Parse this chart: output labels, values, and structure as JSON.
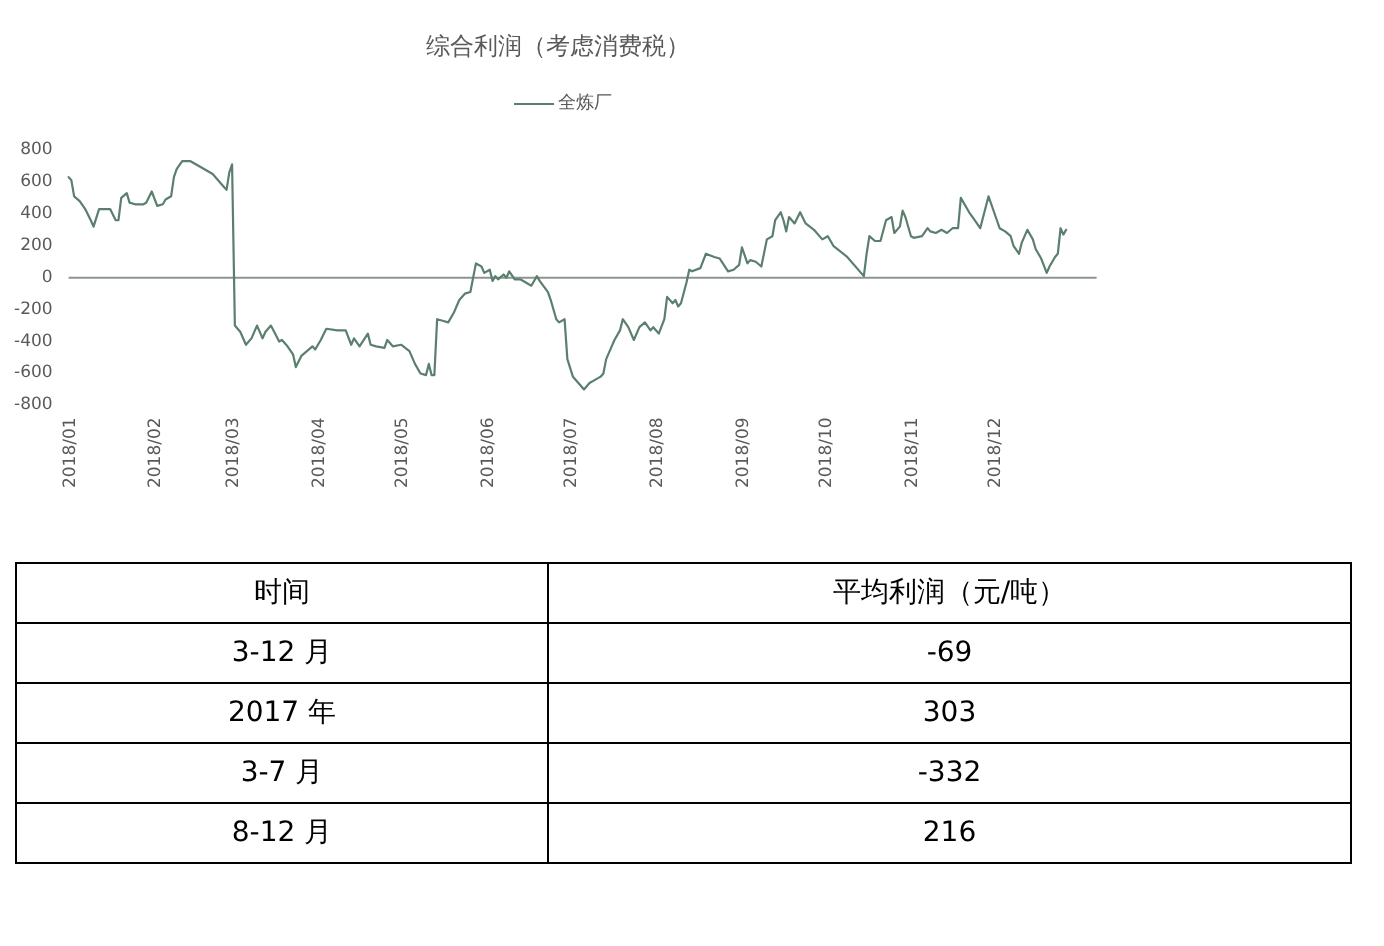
{
  "chart_data": [
    {
      "type": "line",
      "title": "综合利润（考虑消费税）",
      "legend": "top",
      "xlim": [
        "2018-01-01",
        "2019-01-07"
      ],
      "xticks": [
        {
          "value": "2018-01-01",
          "label": "2018/01"
        },
        {
          "value": "2018-02-01",
          "label": "2018/02"
        },
        {
          "value": "2018-03-01",
          "label": "2018/03"
        },
        {
          "value": "2018-04-01",
          "label": "2018/04"
        },
        {
          "value": "2018-05-01",
          "label": "2018/05"
        },
        {
          "value": "2018-06-01",
          "label": "2018/06"
        },
        {
          "value": "2018-07-01",
          "label": "2018/07"
        },
        {
          "value": "2018-08-01",
          "label": "2018/08"
        },
        {
          "value": "2018-09-01",
          "label": "2018/09"
        },
        {
          "value": "2018-10-01",
          "label": "2018/10"
        },
        {
          "value": "2018-11-01",
          "label": "2018/11"
        },
        {
          "value": "2018-12-01",
          "label": "2018/12"
        }
      ],
      "ylim": [
        -800,
        800
      ],
      "yticks": [
        -800,
        -600,
        -400,
        -200,
        0,
        200,
        400,
        600,
        800
      ],
      "series": [
        {
          "name": "全炼厂",
          "color": "#5b7f6e",
          "x": [
            "2018-01-01",
            "2018-01-02",
            "2018-01-03",
            "2018-01-05",
            "2018-01-07",
            "2018-01-09",
            "2018-01-10",
            "2018-01-12",
            "2018-01-16",
            "2018-01-18",
            "2018-01-19",
            "2018-01-20",
            "2018-01-22",
            "2018-01-23",
            "2018-01-25",
            "2018-01-28",
            "2018-01-29",
            "2018-01-31",
            "2018-02-02",
            "2018-02-04",
            "2018-02-05",
            "2018-02-07",
            "2018-02-08",
            "2018-02-09",
            "2018-02-11",
            "2018-02-14",
            "2018-02-17",
            "2018-02-22",
            "2018-02-26",
            "2018-02-27",
            "2018-02-28",
            "2018-03-01",
            "2018-03-02",
            "2018-03-04",
            "2018-03-06",
            "2018-03-08",
            "2018-03-10",
            "2018-03-12",
            "2018-03-13",
            "2018-03-15",
            "2018-03-18",
            "2018-03-19",
            "2018-03-21",
            "2018-03-23",
            "2018-03-24",
            "2018-03-26",
            "2018-03-28",
            "2018-03-30",
            "2018-03-31",
            "2018-04-02",
            "2018-04-04",
            "2018-04-08",
            "2018-04-11",
            "2018-04-13",
            "2018-04-14",
            "2018-04-16",
            "2018-04-19",
            "2018-04-20",
            "2018-04-22",
            "2018-04-25",
            "2018-04-26",
            "2018-04-28",
            "2018-05-01",
            "2018-05-04",
            "2018-05-06",
            "2018-05-08",
            "2018-05-10",
            "2018-05-11",
            "2018-05-12",
            "2018-05-13",
            "2018-05-14",
            "2018-05-16",
            "2018-05-18",
            "2018-05-20",
            "2018-05-22",
            "2018-05-24",
            "2018-05-26",
            "2018-05-28",
            "2018-05-30",
            "2018-05-31",
            "2018-06-02",
            "2018-06-03",
            "2018-06-04",
            "2018-06-05",
            "2018-06-07",
            "2018-06-08",
            "2018-06-09",
            "2018-06-11",
            "2018-06-13",
            "2018-06-15",
            "2018-06-17",
            "2018-06-19",
            "2018-06-20",
            "2018-06-23",
            "2018-06-24",
            "2018-06-26",
            "2018-06-27",
            "2018-06-29",
            "2018-06-30",
            "2018-07-02",
            "2018-07-05",
            "2018-07-06",
            "2018-07-08",
            "2018-07-10",
            "2018-07-12",
            "2018-07-13",
            "2018-07-14",
            "2018-07-16",
            "2018-07-17",
            "2018-07-19",
            "2018-07-20",
            "2018-07-22",
            "2018-07-24",
            "2018-07-26",
            "2018-07-28",
            "2018-07-30",
            "2018-07-31",
            "2018-08-02",
            "2018-08-04",
            "2018-08-05",
            "2018-08-07",
            "2018-08-08",
            "2018-08-09",
            "2018-08-10",
            "2018-08-12",
            "2018-08-13",
            "2018-08-14",
            "2018-08-17",
            "2018-08-19",
            "2018-08-22",
            "2018-08-24",
            "2018-08-27",
            "2018-08-29",
            "2018-08-31",
            "2018-09-01",
            "2018-09-03",
            "2018-09-04",
            "2018-09-06",
            "2018-09-08",
            "2018-09-10",
            "2018-09-12",
            "2018-09-13",
            "2018-09-15",
            "2018-09-16",
            "2018-09-17",
            "2018-09-18",
            "2018-09-20",
            "2018-09-22",
            "2018-09-24",
            "2018-09-27",
            "2018-09-30",
            "2018-10-02",
            "2018-10-04",
            "2018-10-09",
            "2018-10-15",
            "2018-10-16",
            "2018-10-17",
            "2018-10-19",
            "2018-10-21",
            "2018-10-23",
            "2018-10-25",
            "2018-10-26",
            "2018-10-28",
            "2018-10-29",
            "2018-10-30",
            "2018-11-01",
            "2018-11-02",
            "2018-11-05",
            "2018-11-07",
            "2018-11-08",
            "2018-11-10",
            "2018-11-12",
            "2018-11-14",
            "2018-11-16",
            "2018-11-18",
            "2018-11-19",
            "2018-11-22",
            "2018-11-24",
            "2018-11-26",
            "2018-11-29",
            "2018-12-01",
            "2018-12-03",
            "2018-12-05",
            "2018-12-07",
            "2018-12-08",
            "2018-12-10",
            "2018-12-11",
            "2018-12-13",
            "2018-12-15",
            "2018-12-16",
            "2018-12-18",
            "2018-12-20",
            "2018-12-21",
            "2018-12-23",
            "2018-12-24",
            "2018-12-25",
            "2018-12-26",
            "2018-12-27"
          ],
          "values": [
            630,
            610,
            510,
            480,
            430,
            360,
            320,
            430,
            430,
            360,
            360,
            500,
            530,
            470,
            460,
            460,
            470,
            540,
            450,
            460,
            490,
            510,
            630,
            680,
            730,
            730,
            700,
            650,
            570,
            550,
            660,
            710,
            -300,
            -340,
            -420,
            -380,
            -300,
            -380,
            -340,
            -300,
            -400,
            -390,
            -430,
            -480,
            -560,
            -490,
            -460,
            -430,
            -450,
            -390,
            -320,
            -330,
            -330,
            -420,
            -380,
            -430,
            -350,
            -420,
            -430,
            -440,
            -390,
            -430,
            -420,
            -460,
            -540,
            -600,
            -610,
            -540,
            -610,
            -610,
            -260,
            -270,
            -280,
            -220,
            -140,
            -100,
            -90,
            90,
            70,
            30,
            50,
            -20,
            10,
            -10,
            20,
            0,
            40,
            -10,
            -10,
            -30,
            -50,
            10,
            -20,
            -90,
            -140,
            -260,
            -280,
            -260,
            -510,
            -620,
            -680,
            -700,
            -660,
            -640,
            -620,
            -600,
            -510,
            -430,
            -390,
            -330,
            -260,
            -310,
            -390,
            -310,
            -280,
            -330,
            -310,
            -350,
            -260,
            -120,
            -160,
            -140,
            -180,
            -160,
            -30,
            50,
            40,
            60,
            150,
            130,
            120,
            40,
            50,
            80,
            190,
            90,
            110,
            100,
            70,
            240,
            260,
            360,
            410,
            360,
            290,
            380,
            340,
            410,
            340,
            300,
            240,
            260,
            200,
            130,
            10,
            150,
            260,
            230,
            230,
            360,
            380,
            280,
            320,
            420,
            380,
            260,
            250,
            260,
            310,
            290,
            280,
            300,
            280,
            310,
            310,
            500,
            410,
            360,
            310,
            510,
            410,
            310,
            290,
            260,
            200,
            150,
            220,
            300,
            240,
            180,
            120,
            30,
            70,
            130,
            150,
            310,
            270,
            300
          ]
        }
      ]
    },
    {
      "type": "other",
      "xlabel": "时间",
      "ylabel": "平均利润（元/吨）",
      "categories": [
        "3-12 月",
        "2017 年",
        "3-7 月",
        "8-12 月"
      ],
      "values": [
        -69,
        303,
        -332,
        216
      ],
      "data_labels": true
    }
  ]
}
